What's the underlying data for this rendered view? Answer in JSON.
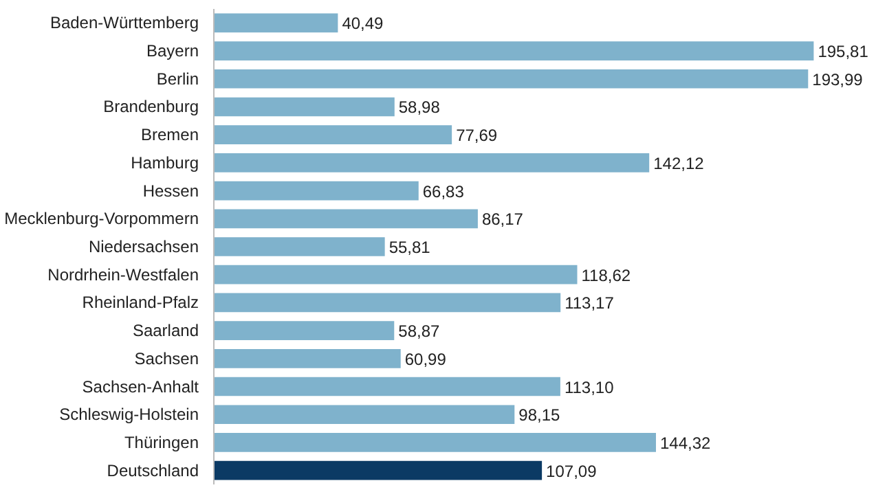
{
  "chart_data": {
    "type": "bar",
    "orientation": "horizontal",
    "categories": [
      "Baden-Württemberg",
      "Bayern",
      "Berlin",
      "Brandenburg",
      "Bremen",
      "Hamburg",
      "Hessen",
      "Mecklenburg-Vorpommern",
      "Niedersachsen",
      "Nordrhein-Westfalen",
      "Rheinland-Pfalz",
      "Saarland",
      "Sachsen",
      "Sachsen-Anhalt",
      "Schleswig-Holstein",
      "Thüringen",
      "Deutschland"
    ],
    "values": [
      40.49,
      195.81,
      193.99,
      58.98,
      77.69,
      142.12,
      66.83,
      86.17,
      55.81,
      118.62,
      113.17,
      58.87,
      60.99,
      113.1,
      98.15,
      144.32,
      107.09
    ],
    "value_labels": [
      "40,49",
      "195,81",
      "193,99",
      "58,98",
      "77,69",
      "142,12",
      "66,83",
      "86,17",
      "55,81",
      "118,62",
      "113,17",
      "58,87",
      "60,99",
      "113,10",
      "98,15",
      "144,32",
      "107,09"
    ],
    "colors": [
      "#7fb2cc",
      "#7fb2cc",
      "#7fb2cc",
      "#7fb2cc",
      "#7fb2cc",
      "#7fb2cc",
      "#7fb2cc",
      "#7fb2cc",
      "#7fb2cc",
      "#7fb2cc",
      "#7fb2cc",
      "#7fb2cc",
      "#7fb2cc",
      "#7fb2cc",
      "#7fb2cc",
      "#7fb2cc",
      "#0b3a64"
    ],
    "grid": false
  }
}
